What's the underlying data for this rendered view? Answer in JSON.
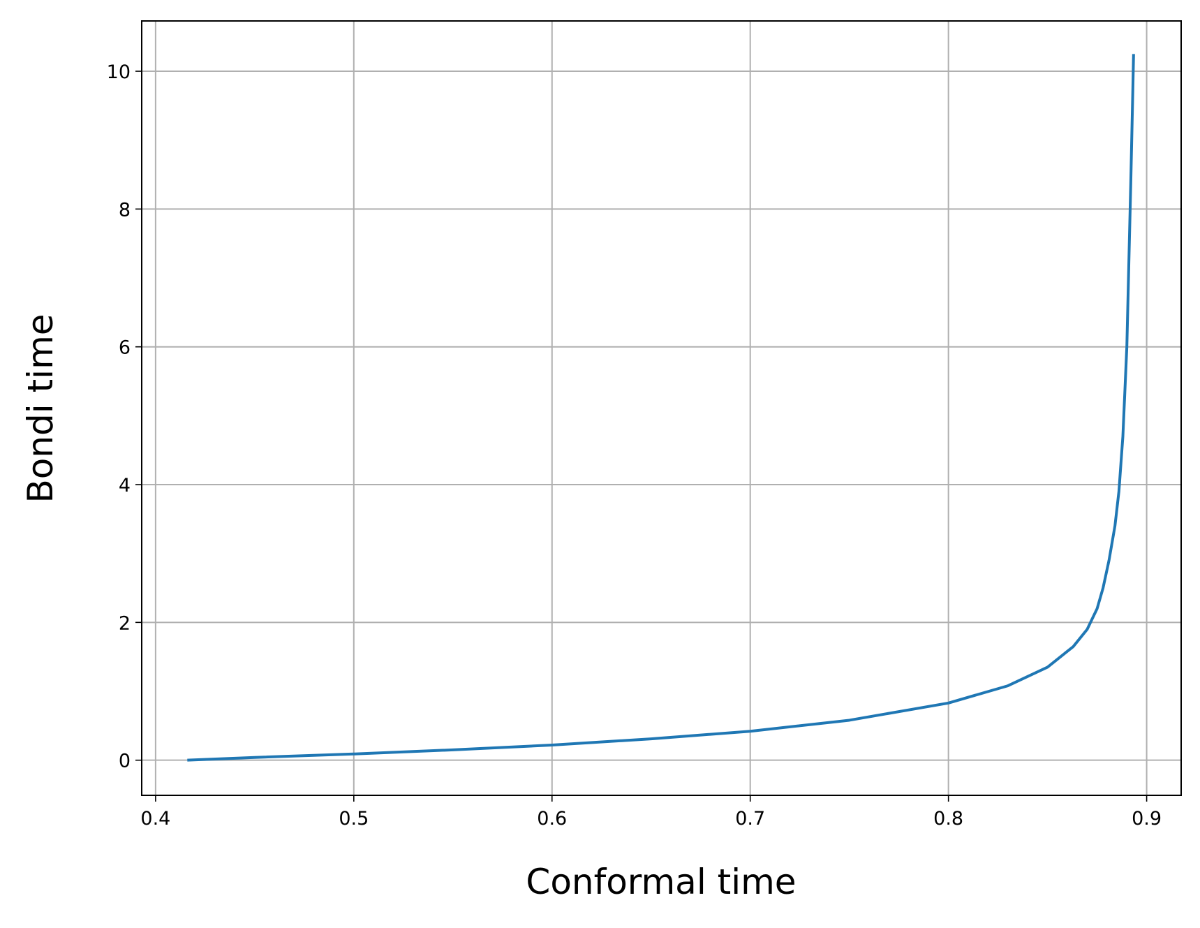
{
  "chart_data": {
    "type": "line",
    "x_label": "Conformal time",
    "y_label": "Bondi time",
    "x": [
      0.416,
      0.45,
      0.5,
      0.55,
      0.6,
      0.65,
      0.7,
      0.75,
      0.8,
      0.83,
      0.85,
      0.863,
      0.87,
      0.875,
      0.878,
      0.881,
      0.884,
      0.886,
      0.888,
      0.89,
      0.891,
      0.892,
      0.893,
      0.8934
    ],
    "series": [
      {
        "name": "Bondi time",
        "color": "#1f77b4",
        "values": [
          0,
          0.04,
          0.09,
          0.15,
          0.22,
          0.31,
          0.42,
          0.58,
          0.83,
          1.08,
          1.35,
          1.65,
          1.9,
          2.2,
          2.5,
          2.9,
          3.4,
          3.9,
          4.7,
          6.0,
          7.2,
          8.4,
          9.7,
          10.25
        ]
      }
    ],
    "xlim": [
      0.393,
      0.9174
    ],
    "ylim": [
      -0.51,
      10.73
    ],
    "xticks": [
      0.4,
      0.5,
      0.6,
      0.7,
      0.8,
      0.9
    ],
    "yticks": [
      0,
      2,
      4,
      6,
      8,
      10
    ],
    "grid": true
  }
}
